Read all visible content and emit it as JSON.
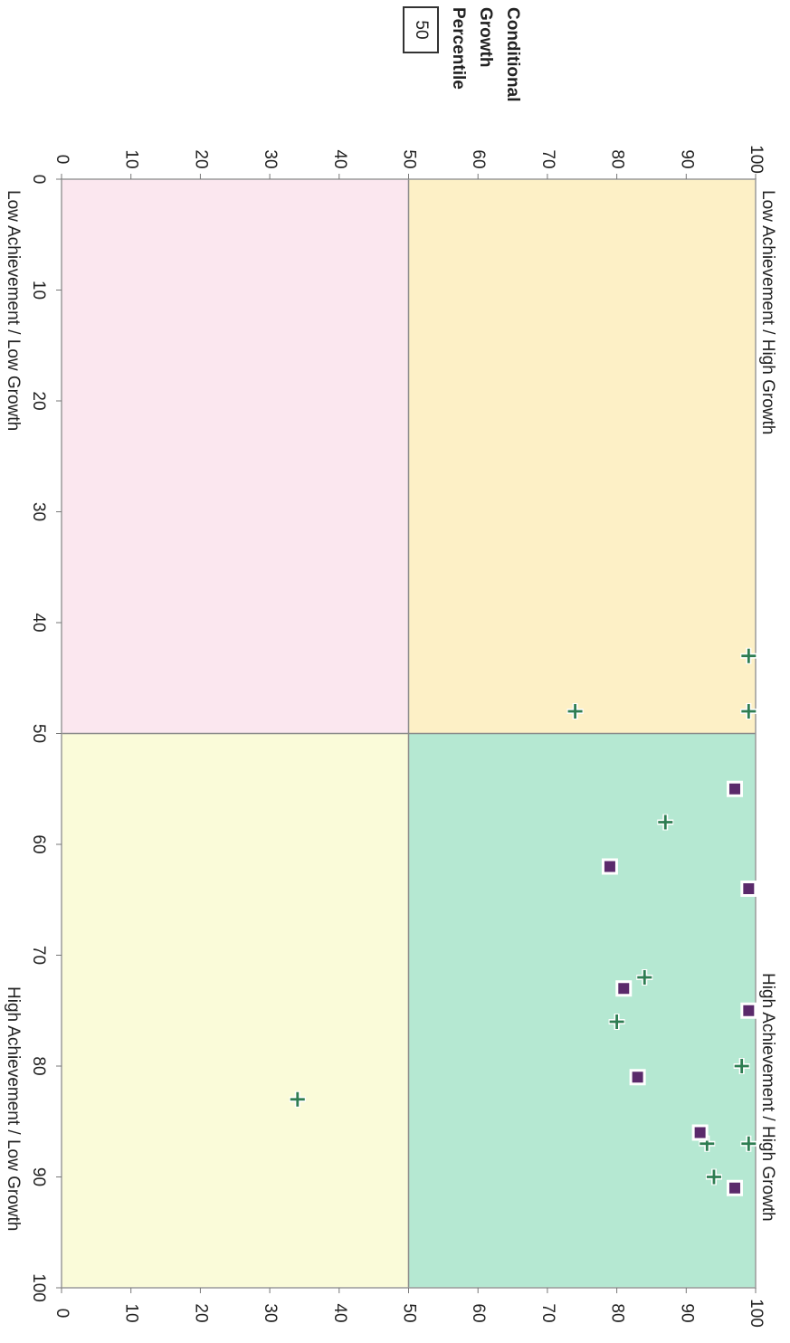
{
  "chart_data": {
    "type": "scatter",
    "title": "",
    "xlabel": "",
    "ylabel_lines": [
      "Conditional",
      "Growth",
      "Percentile"
    ],
    "y_reference_value": "50",
    "xlim": [
      0,
      100
    ],
    "ylim": [
      0,
      100
    ],
    "x_ticks": [
      0,
      10,
      20,
      30,
      40,
      50,
      60,
      70,
      80,
      90,
      100
    ],
    "y_ticks": [
      0,
      10,
      20,
      30,
      40,
      50,
      60,
      70,
      80,
      90,
      100
    ],
    "x_split": 50,
    "y_split": 50,
    "quadrants": {
      "top_left": {
        "label": "Low Achievement / High Growth",
        "color": "#fdf0c6"
      },
      "top_right": {
        "label": "High Achievement / High Growth",
        "color": "#b5e8d2"
      },
      "bottom_left": {
        "label": "Low Achievement / Low Growth",
        "color": "#fbe7ef"
      },
      "bottom_right": {
        "label": "High Achievement / Low Growth",
        "color": "#fafbd9"
      }
    },
    "series": [
      {
        "marker": "cross",
        "color": "#2e7d52",
        "points": [
          {
            "x": 43,
            "y": 99
          },
          {
            "x": 48,
            "y": 99
          },
          {
            "x": 48,
            "y": 74
          },
          {
            "x": 58,
            "y": 87
          },
          {
            "x": 72,
            "y": 84
          },
          {
            "x": 76,
            "y": 80
          },
          {
            "x": 80,
            "y": 98
          },
          {
            "x": 87,
            "y": 99
          },
          {
            "x": 87,
            "y": 93
          },
          {
            "x": 90,
            "y": 94
          },
          {
            "x": 83,
            "y": 34
          }
        ]
      },
      {
        "marker": "square",
        "color": "#5a2a6b",
        "points": [
          {
            "x": 55,
            "y": 97
          },
          {
            "x": 62,
            "y": 79
          },
          {
            "x": 64,
            "y": 99
          },
          {
            "x": 73,
            "y": 81
          },
          {
            "x": 75,
            "y": 99
          },
          {
            "x": 81,
            "y": 83
          },
          {
            "x": 86,
            "y": 92
          },
          {
            "x": 91,
            "y": 97
          }
        ]
      }
    ]
  }
}
